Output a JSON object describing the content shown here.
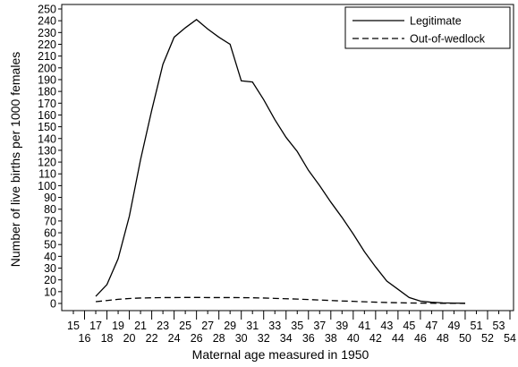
{
  "chart_data": {
    "type": "line",
    "title": "",
    "xlabel": "Maternal age measured in 1950",
    "ylabel": "Number of live births per 1000 females",
    "xlim": [
      15,
      54
    ],
    "ylim": [
      0,
      250
    ],
    "x_ticks": [
      15,
      16,
      17,
      18,
      19,
      20,
      21,
      22,
      23,
      24,
      25,
      26,
      27,
      28,
      29,
      30,
      31,
      32,
      33,
      34,
      35,
      36,
      37,
      38,
      39,
      40,
      41,
      42,
      43,
      44,
      45,
      46,
      47,
      48,
      49,
      50,
      51,
      52,
      53,
      54
    ],
    "y_ticks": [
      0,
      10,
      20,
      30,
      40,
      50,
      60,
      70,
      80,
      90,
      100,
      110,
      120,
      130,
      140,
      150,
      160,
      170,
      180,
      190,
      200,
      210,
      220,
      230,
      240,
      250
    ],
    "grid": false,
    "legend_position": "top-right",
    "series": [
      {
        "name": "Legitimate",
        "style": "solid",
        "color": "#000000",
        "x": [
          17,
          18,
          19,
          20,
          21,
          22,
          23,
          24,
          25,
          26,
          27,
          28,
          29,
          30,
          31,
          32,
          33,
          34,
          35,
          36,
          37,
          38,
          39,
          40,
          41,
          42,
          43,
          44,
          45,
          46,
          47,
          48,
          49,
          50
        ],
        "values": [
          6,
          16,
          38,
          74,
          122,
          164,
          203,
          226,
          234,
          241,
          233,
          226,
          220,
          189,
          188,
          173,
          156,
          141,
          129,
          113,
          100,
          86,
          73,
          59,
          44,
          31,
          19,
          12,
          5,
          2,
          1,
          0.5,
          0.3,
          0.2
        ]
      },
      {
        "name": "Out-of-wedlock",
        "style": "dashed",
        "color": "#000000",
        "x": [
          17,
          18,
          19,
          20,
          21,
          22,
          23,
          24,
          25,
          26,
          27,
          28,
          29,
          30,
          31,
          32,
          33,
          34,
          35,
          36,
          37,
          38,
          39,
          40,
          41,
          42,
          43,
          44,
          45,
          46,
          47,
          48,
          49,
          50
        ],
        "values": [
          1.5,
          2.5,
          3.5,
          4.2,
          4.6,
          4.8,
          5,
          5,
          5.1,
          5.1,
          5,
          5,
          5,
          4.9,
          4.8,
          4.6,
          4.3,
          4,
          3.7,
          3.3,
          2.9,
          2.5,
          2.1,
          1.8,
          1.4,
          1.1,
          0.8,
          0.6,
          0.4,
          0.3,
          0.2,
          0.1,
          0.1,
          0.05
        ]
      }
    ]
  }
}
